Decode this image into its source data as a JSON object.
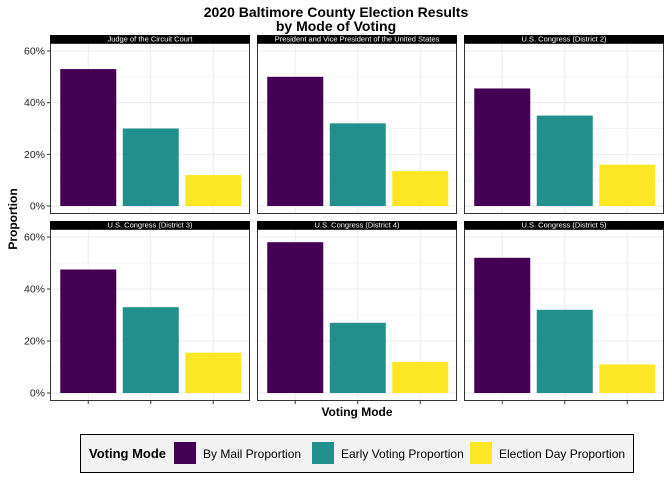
{
  "chart_data": {
    "type": "bar",
    "title_line1": "2020 Baltimore County Election Results",
    "title_line2": "by Mode of Voting",
    "xlabel": "Voting Mode",
    "ylabel": "Proportion",
    "ylim": [
      0,
      0.6
    ],
    "yticks": [
      "0%",
      "20%",
      "40%",
      "60%"
    ],
    "grid": true,
    "legend_position": "bottom",
    "legend_title": "Voting Mode",
    "categories": [
      "By Mail Proportion",
      "Early Voting Proportion",
      "Election Day Proportion"
    ],
    "colors": [
      "#440154",
      "#21908C",
      "#FDE725"
    ],
    "panels": [
      {
        "name": "Judge of the Circuit Court",
        "values": [
          0.53,
          0.3,
          0.12
        ]
      },
      {
        "name": "President and Vice President of the United States",
        "values": [
          0.5,
          0.32,
          0.135
        ]
      },
      {
        "name": "U.S. Congress (District 2)",
        "values": [
          0.455,
          0.35,
          0.16
        ]
      },
      {
        "name": "U.S. Congress (District 3)",
        "values": [
          0.475,
          0.33,
          0.155
        ]
      },
      {
        "name": "U.S. Congress (District 4)",
        "values": [
          0.58,
          0.27,
          0.12
        ]
      },
      {
        "name": "U.S. Congress (District 5)",
        "values": [
          0.52,
          0.32,
          0.11
        ]
      }
    ]
  }
}
